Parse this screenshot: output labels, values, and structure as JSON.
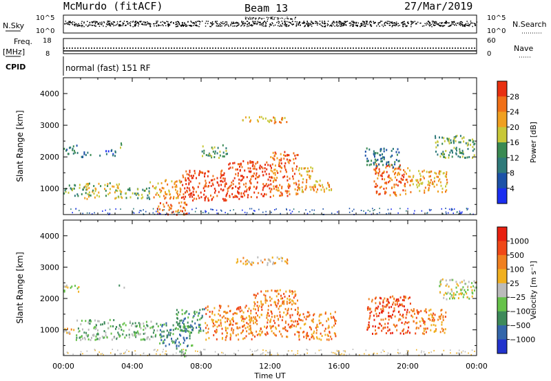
{
  "header": {
    "station": "McMurdo (fitACF)",
    "beam": "Beam 13",
    "date": "27/Mar/2019"
  },
  "noise_panel": {
    "left_label": "N.Sky",
    "right_label": "N.Search",
    "left_ticks": [
      "10^5",
      "10^0"
    ],
    "right_ticks": [
      "10^5",
      "10^0"
    ]
  },
  "freq_panel": {
    "left_label_1": "Freq.",
    "left_label_2": "[MHz]",
    "right_label": "Nave",
    "left_ticks": [
      "18",
      "8"
    ],
    "right_ticks": [
      "60",
      "0"
    ]
  },
  "cpid": {
    "label": "CPID",
    "value": "normal (fast) 151 RF"
  },
  "chart_data": [
    {
      "type": "heatmap",
      "name": "power",
      "ylabel": "Slant Range [km]",
      "xlabel": "Time UT",
      "x_ticks": [
        "00:00",
        "04:00",
        "08:00",
        "12:00",
        "16:00",
        "20:00",
        "00:00"
      ],
      "y_ticks": [
        1000,
        2000,
        3000,
        4000
      ],
      "xlim_hours": [
        0,
        24
      ],
      "ylim": [
        180,
        4500
      ],
      "colorbar_label": "Power [dB]",
      "colorbar_ticks": [
        4,
        8,
        12,
        16,
        20,
        24,
        28
      ],
      "colorbar_range": [
        0,
        32
      ],
      "colors": [
        "#1a2ef0",
        "#1c52a8",
        "#2f7a7a",
        "#3a8a52",
        "#c8c838",
        "#f0a020",
        "#f07018",
        "#e83010"
      ],
      "regions": [
        {
          "t0": 0.0,
          "t1": 0.9,
          "r0": 2100,
          "r1": 2400,
          "level": 2
        },
        {
          "t0": 1.0,
          "t1": 1.7,
          "r0": 2000,
          "r1": 2200,
          "level": 2
        },
        {
          "t0": 2.0,
          "t1": 3.0,
          "r0": 2050,
          "r1": 2250,
          "level": 1
        },
        {
          "t0": 3.2,
          "t1": 3.5,
          "r0": 2300,
          "r1": 2500,
          "level": 4
        },
        {
          "t0": 0.0,
          "t1": 1.2,
          "r0": 800,
          "r1": 1150,
          "level": 3
        },
        {
          "t0": 1.2,
          "t1": 3.4,
          "r0": 700,
          "r1": 1200,
          "level": 4
        },
        {
          "t0": 3.4,
          "t1": 5.0,
          "r0": 700,
          "r1": 1050,
          "level": 3
        },
        {
          "t0": 5.0,
          "t1": 6.8,
          "r0": 700,
          "r1": 1300,
          "level": 5
        },
        {
          "t0": 5.4,
          "t1": 7.2,
          "r0": 200,
          "r1": 600,
          "level": 6
        },
        {
          "t0": 6.8,
          "t1": 9.5,
          "r0": 650,
          "r1": 1600,
          "level": 7
        },
        {
          "t0": 9.5,
          "t1": 12.0,
          "r0": 700,
          "r1": 1900,
          "level": 7
        },
        {
          "t0": 12.0,
          "t1": 13.6,
          "r0": 800,
          "r1": 2200,
          "level": 6
        },
        {
          "t0": 13.6,
          "t1": 14.6,
          "r0": 900,
          "r1": 1700,
          "level": 5
        },
        {
          "t0": 10.2,
          "t1": 13.0,
          "r0": 3100,
          "r1": 3300,
          "level": 5
        },
        {
          "t0": 8.0,
          "t1": 9.5,
          "r0": 2000,
          "r1": 2400,
          "level": 3
        },
        {
          "t0": 14.5,
          "t1": 15.6,
          "r0": 900,
          "r1": 1300,
          "level": 5
        },
        {
          "t0": 18.0,
          "t1": 20.0,
          "r0": 800,
          "r1": 1800,
          "level": 6
        },
        {
          "t0": 20.0,
          "t1": 22.3,
          "r0": 900,
          "r1": 1600,
          "level": 5
        },
        {
          "t0": 21.5,
          "t1": 24.0,
          "r0": 2000,
          "r1": 2700,
          "level": 3
        },
        {
          "t0": 17.5,
          "t1": 19.5,
          "r0": 1700,
          "r1": 2300,
          "level": 2
        }
      ]
    },
    {
      "type": "heatmap",
      "name": "velocity",
      "ylabel": "Slant Range [km]",
      "xlabel": "Time UT",
      "x_ticks": [
        "00:00",
        "04:00",
        "08:00",
        "12:00",
        "16:00",
        "20:00",
        "00:00"
      ],
      "y_ticks": [
        1000,
        2000,
        3000,
        4000
      ],
      "xlim_hours": [
        0,
        24
      ],
      "ylim": [
        180,
        4500
      ],
      "colorbar_label": "Velocity [m s⁻¹]",
      "colorbar_ticks": [
        "1000",
        "500",
        "100",
        "25",
        "−25",
        "−100",
        "−500",
        "−1000"
      ],
      "colors": [
        "#2233cc",
        "#3366aa",
        "#3d8a5a",
        "#66c24a",
        "#bbbbbb",
        "#f0b020",
        "#f08020",
        "#f04818",
        "#e82010"
      ],
      "regions": [
        {
          "t0": 0.0,
          "t1": 0.9,
          "r0": 2200,
          "r1": 2450,
          "level": 4
        },
        {
          "t0": 3.2,
          "t1": 3.5,
          "r0": 2300,
          "r1": 2450,
          "level": 3
        },
        {
          "t0": 0.0,
          "t1": 0.7,
          "r0": 850,
          "r1": 1100,
          "level": 5
        },
        {
          "t0": 0.7,
          "t1": 3.0,
          "r0": 700,
          "r1": 1350,
          "level": 3
        },
        {
          "t0": 3.0,
          "t1": 5.5,
          "r0": 700,
          "r1": 1300,
          "level": 3
        },
        {
          "t0": 5.5,
          "t1": 7.5,
          "r0": 500,
          "r1": 1250,
          "level": 2
        },
        {
          "t0": 6.5,
          "t1": 8.2,
          "r0": 900,
          "r1": 1700,
          "level": 2
        },
        {
          "t0": 8.2,
          "t1": 11.0,
          "r0": 700,
          "r1": 1800,
          "level": 6
        },
        {
          "t0": 11.0,
          "t1": 13.6,
          "r0": 800,
          "r1": 2300,
          "level": 6
        },
        {
          "t0": 13.6,
          "t1": 15.8,
          "r0": 700,
          "r1": 1600,
          "level": 6
        },
        {
          "t0": 10.0,
          "t1": 13.0,
          "r0": 3100,
          "r1": 3350,
          "level": 5
        },
        {
          "t0": 17.6,
          "t1": 20.2,
          "r0": 900,
          "r1": 2100,
          "level": 7
        },
        {
          "t0": 20.2,
          "t1": 22.2,
          "r0": 900,
          "r1": 1700,
          "level": 6
        },
        {
          "t0": 21.8,
          "t1": 24.0,
          "r0": 2000,
          "r1": 2650,
          "level": 4
        },
        {
          "t0": 6.5,
          "t1": 7.2,
          "r0": 150,
          "r1": 450,
          "level": 3
        }
      ]
    }
  ]
}
